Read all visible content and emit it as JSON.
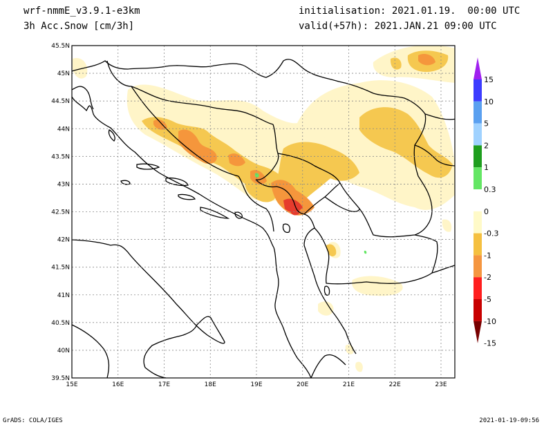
{
  "header": {
    "model": "wrf-nmmE_v3.9.1-e3km",
    "field": "3h Acc.Snow [cm/3h]",
    "init": "initialisation: 2021.01.19.  00:00 UTC",
    "valid": "valid(+57h): 2021.JAN.21 09:00 UTC"
  },
  "footer": {
    "left": "GrADS: COLA/IGES",
    "right": "2021-01-19-09:56"
  },
  "axes": {
    "lon_labels": [
      "15E",
      "16E",
      "17E",
      "18E",
      "19E",
      "20E",
      "21E",
      "22E",
      "23E"
    ],
    "lat_labels": [
      "45.5N",
      "45N",
      "44.5N",
      "44N",
      "43.5N",
      "43N",
      "42.5N",
      "42N",
      "41.5N",
      "41N",
      "40.5N",
      "40N",
      "39.5N"
    ],
    "lon_range": [
      15,
      23.3
    ],
    "lat_range": [
      39.5,
      45.5
    ]
  },
  "colorbar": {
    "labels": [
      "15",
      "10",
      "5",
      "2",
      "1",
      "0.3",
      "0",
      "-0.3",
      "-1",
      "-2",
      "-5",
      "-10",
      "-15"
    ],
    "colors": [
      "#a020f0",
      "#3c3cff",
      "#5aa0f0",
      "#a0d2ff",
      "#1e9e1e",
      "#64e664",
      "#ffffff",
      "#fffac8",
      "#f5c040",
      "#f59640",
      "#ff1e1e",
      "#c80000",
      "#780000"
    ]
  },
  "snow_colors": {
    "light": "#fff5c8",
    "moderate": "#f5c850",
    "heavy": "#f5963c",
    "very_heavy": "#e63c2d",
    "positive": "#64e664"
  }
}
